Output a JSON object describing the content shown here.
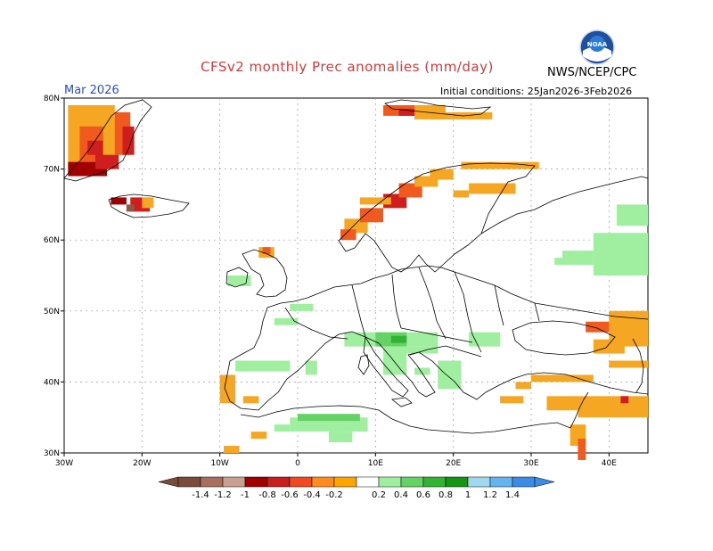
{
  "header": {
    "title": "CFSv2 monthly Prec anomalies (mm/day)",
    "month": "Mar 2026",
    "initial_conditions": "Initial conditions: 25Jan2026-3Feb2026",
    "agency": "NWS/NCEP/CPC",
    "logo_text": "NOAA"
  },
  "axes": {
    "lat_labels": [
      "80N",
      "70N",
      "60N",
      "50N",
      "40N",
      "30N"
    ],
    "lon_labels": [
      "30W",
      "20W",
      "10W",
      "0",
      "10E",
      "20E",
      "30E",
      "40E"
    ]
  },
  "colorbar": {
    "labels": [
      "-1.4",
      "-1.2",
      "-1",
      "-0.8",
      "-0.6",
      "-0.4",
      "-0.2",
      "0.2",
      "0.4",
      "0.6",
      "0.8",
      "1",
      "1.2",
      "1.4"
    ],
    "colors": [
      "#7a4a3a",
      "#a86f5e",
      "#c8a090",
      "#a00000",
      "#c81e1e",
      "#f04a1e",
      "#ff8c1e",
      "#ffa500",
      "#ffffff",
      "#a0eea0",
      "#64d264",
      "#32b432",
      "#149614",
      "#a0d8f0",
      "#64b4f0",
      "#3c8ce6"
    ]
  },
  "anomaly_colors": {
    "orange": "#f5a623",
    "red_orange": "#f05a1e",
    "red": "#d01e1e",
    "dark_red": "#a00000",
    "brown": "#8c5a4a",
    "light_green": "#a0eea0",
    "green": "#64d264",
    "dark_green": "#32b432"
  }
}
